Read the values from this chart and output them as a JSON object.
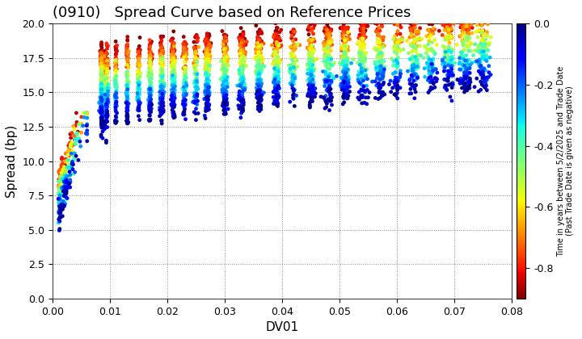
{
  "title": "(0910)   Spread Curve based on Reference Prices",
  "xlabel": "DV01",
  "ylabel": "Spread (bp)",
  "xlim": [
    0.0,
    0.08
  ],
  "ylim": [
    0.0,
    20.0
  ],
  "xticks": [
    0.0,
    0.01,
    0.02,
    0.03,
    0.04,
    0.05,
    0.06,
    0.07,
    0.08
  ],
  "yticks": [
    0.0,
    2.5,
    5.0,
    7.5,
    10.0,
    12.5,
    15.0,
    17.5,
    20.0
  ],
  "colorbar_label": "Time in years between 5/2/2025 and Trade Date\n(Past Trade Date is given as negative)",
  "colorbar_ticks": [
    0.0,
    -0.2,
    -0.4,
    -0.6,
    -0.8
  ],
  "cmap": "jet_r",
  "vmin": -0.9,
  "vmax": 0.0,
  "seed": 42,
  "background_color": "#ffffff",
  "grid_color": "#888888",
  "title_fontsize": 13,
  "axis_fontsize": 11,
  "tick_fontsize": 9,
  "dot_size": 12
}
